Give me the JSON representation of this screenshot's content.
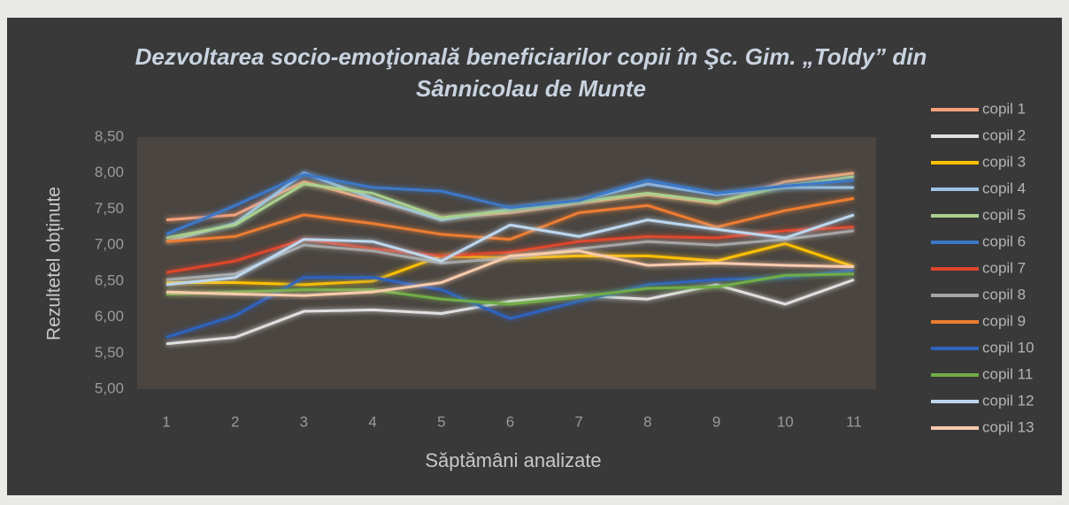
{
  "chart_data": {
    "type": "line",
    "title": "Dezvoltarea socio-emoţională beneficiarilor copii  în  Şc. Gim. „Toldy” din Sânnicolau de Munte",
    "x_label": "Săptămâni analizate",
    "y_label": "Rezultetel obținute",
    "categories": [
      "1",
      "2",
      "3",
      "4",
      "5",
      "6",
      "7",
      "8",
      "9",
      "10",
      "11"
    ],
    "ylim": [
      5,
      8.5
    ],
    "yticks": [
      {
        "value": 5,
        "label": "5,00"
      },
      {
        "value": 5.5,
        "label": "5,50"
      },
      {
        "value": 6,
        "label": "6,00"
      },
      {
        "value": 6.5,
        "label": "6,50"
      },
      {
        "value": 7,
        "label": "7,00"
      },
      {
        "value": 7.5,
        "label": "7,50"
      },
      {
        "value": 8,
        "label": "8,00"
      },
      {
        "value": 8.5,
        "label": "8,50"
      }
    ],
    "legend": "right",
    "series": [
      {
        "name": "copil 1",
        "color": "#f4a07a",
        "values": [
          7.35,
          7.42,
          7.88,
          7.62,
          7.38,
          7.45,
          7.58,
          7.7,
          7.58,
          7.88,
          8.0
        ]
      },
      {
        "name": "copil 2",
        "color": "#e0e0e0",
        "values": [
          5.63,
          5.72,
          6.08,
          6.1,
          6.05,
          6.22,
          6.3,
          6.25,
          6.45,
          6.18,
          6.52
        ]
      },
      {
        "name": "copil 3",
        "color": "#ffc000",
        "values": [
          6.48,
          6.48,
          6.45,
          6.5,
          6.85,
          6.82,
          6.85,
          6.85,
          6.78,
          7.02,
          6.7
        ]
      },
      {
        "name": "copil 4",
        "color": "#9dc3e6",
        "values": [
          7.05,
          7.3,
          8.0,
          7.65,
          7.35,
          7.5,
          7.62,
          7.85,
          7.7,
          7.8,
          7.8
        ]
      },
      {
        "name": "copil 5",
        "color": "#a9d18e",
        "values": [
          7.1,
          7.28,
          7.85,
          7.72,
          7.38,
          7.48,
          7.6,
          7.72,
          7.6,
          7.82,
          7.95
        ]
      },
      {
        "name": "copil 6",
        "color": "#3c78c8",
        "values": [
          7.15,
          7.55,
          7.98,
          7.8,
          7.75,
          7.52,
          7.62,
          7.9,
          7.72,
          7.82,
          7.9
        ]
      },
      {
        "name": "copil 7",
        "color": "#e0452b",
        "values": [
          6.62,
          6.78,
          7.08,
          6.95,
          6.85,
          6.9,
          7.05,
          7.12,
          7.1,
          7.2,
          7.25
        ]
      },
      {
        "name": "copil 8",
        "color": "#a5a5a5",
        "values": [
          6.52,
          6.6,
          7.0,
          6.92,
          6.75,
          6.82,
          6.95,
          7.05,
          7.0,
          7.08,
          7.2
        ]
      },
      {
        "name": "copil 9",
        "color": "#ed7d31",
        "values": [
          7.05,
          7.12,
          7.42,
          7.3,
          7.15,
          7.08,
          7.45,
          7.55,
          7.25,
          7.48,
          7.65
        ]
      },
      {
        "name": "copil 10",
        "color": "#2e64c0",
        "values": [
          5.72,
          6.02,
          6.55,
          6.55,
          6.38,
          5.98,
          6.22,
          6.45,
          6.52,
          6.55,
          6.65
        ]
      },
      {
        "name": "copil 11",
        "color": "#70ad47",
        "values": [
          6.32,
          6.35,
          6.38,
          6.38,
          6.25,
          6.18,
          6.28,
          6.4,
          6.42,
          6.58,
          6.6
        ]
      },
      {
        "name": "copil 12",
        "color": "#bdd7ee",
        "values": [
          6.45,
          6.55,
          7.08,
          7.05,
          6.78,
          7.28,
          7.12,
          7.35,
          7.22,
          7.1,
          7.42
        ]
      },
      {
        "name": "copil 13",
        "color": "#f8cbad",
        "values": [
          6.35,
          6.32,
          6.3,
          6.35,
          6.48,
          6.85,
          6.92,
          6.72,
          6.75,
          6.72,
          6.7
        ]
      }
    ]
  }
}
